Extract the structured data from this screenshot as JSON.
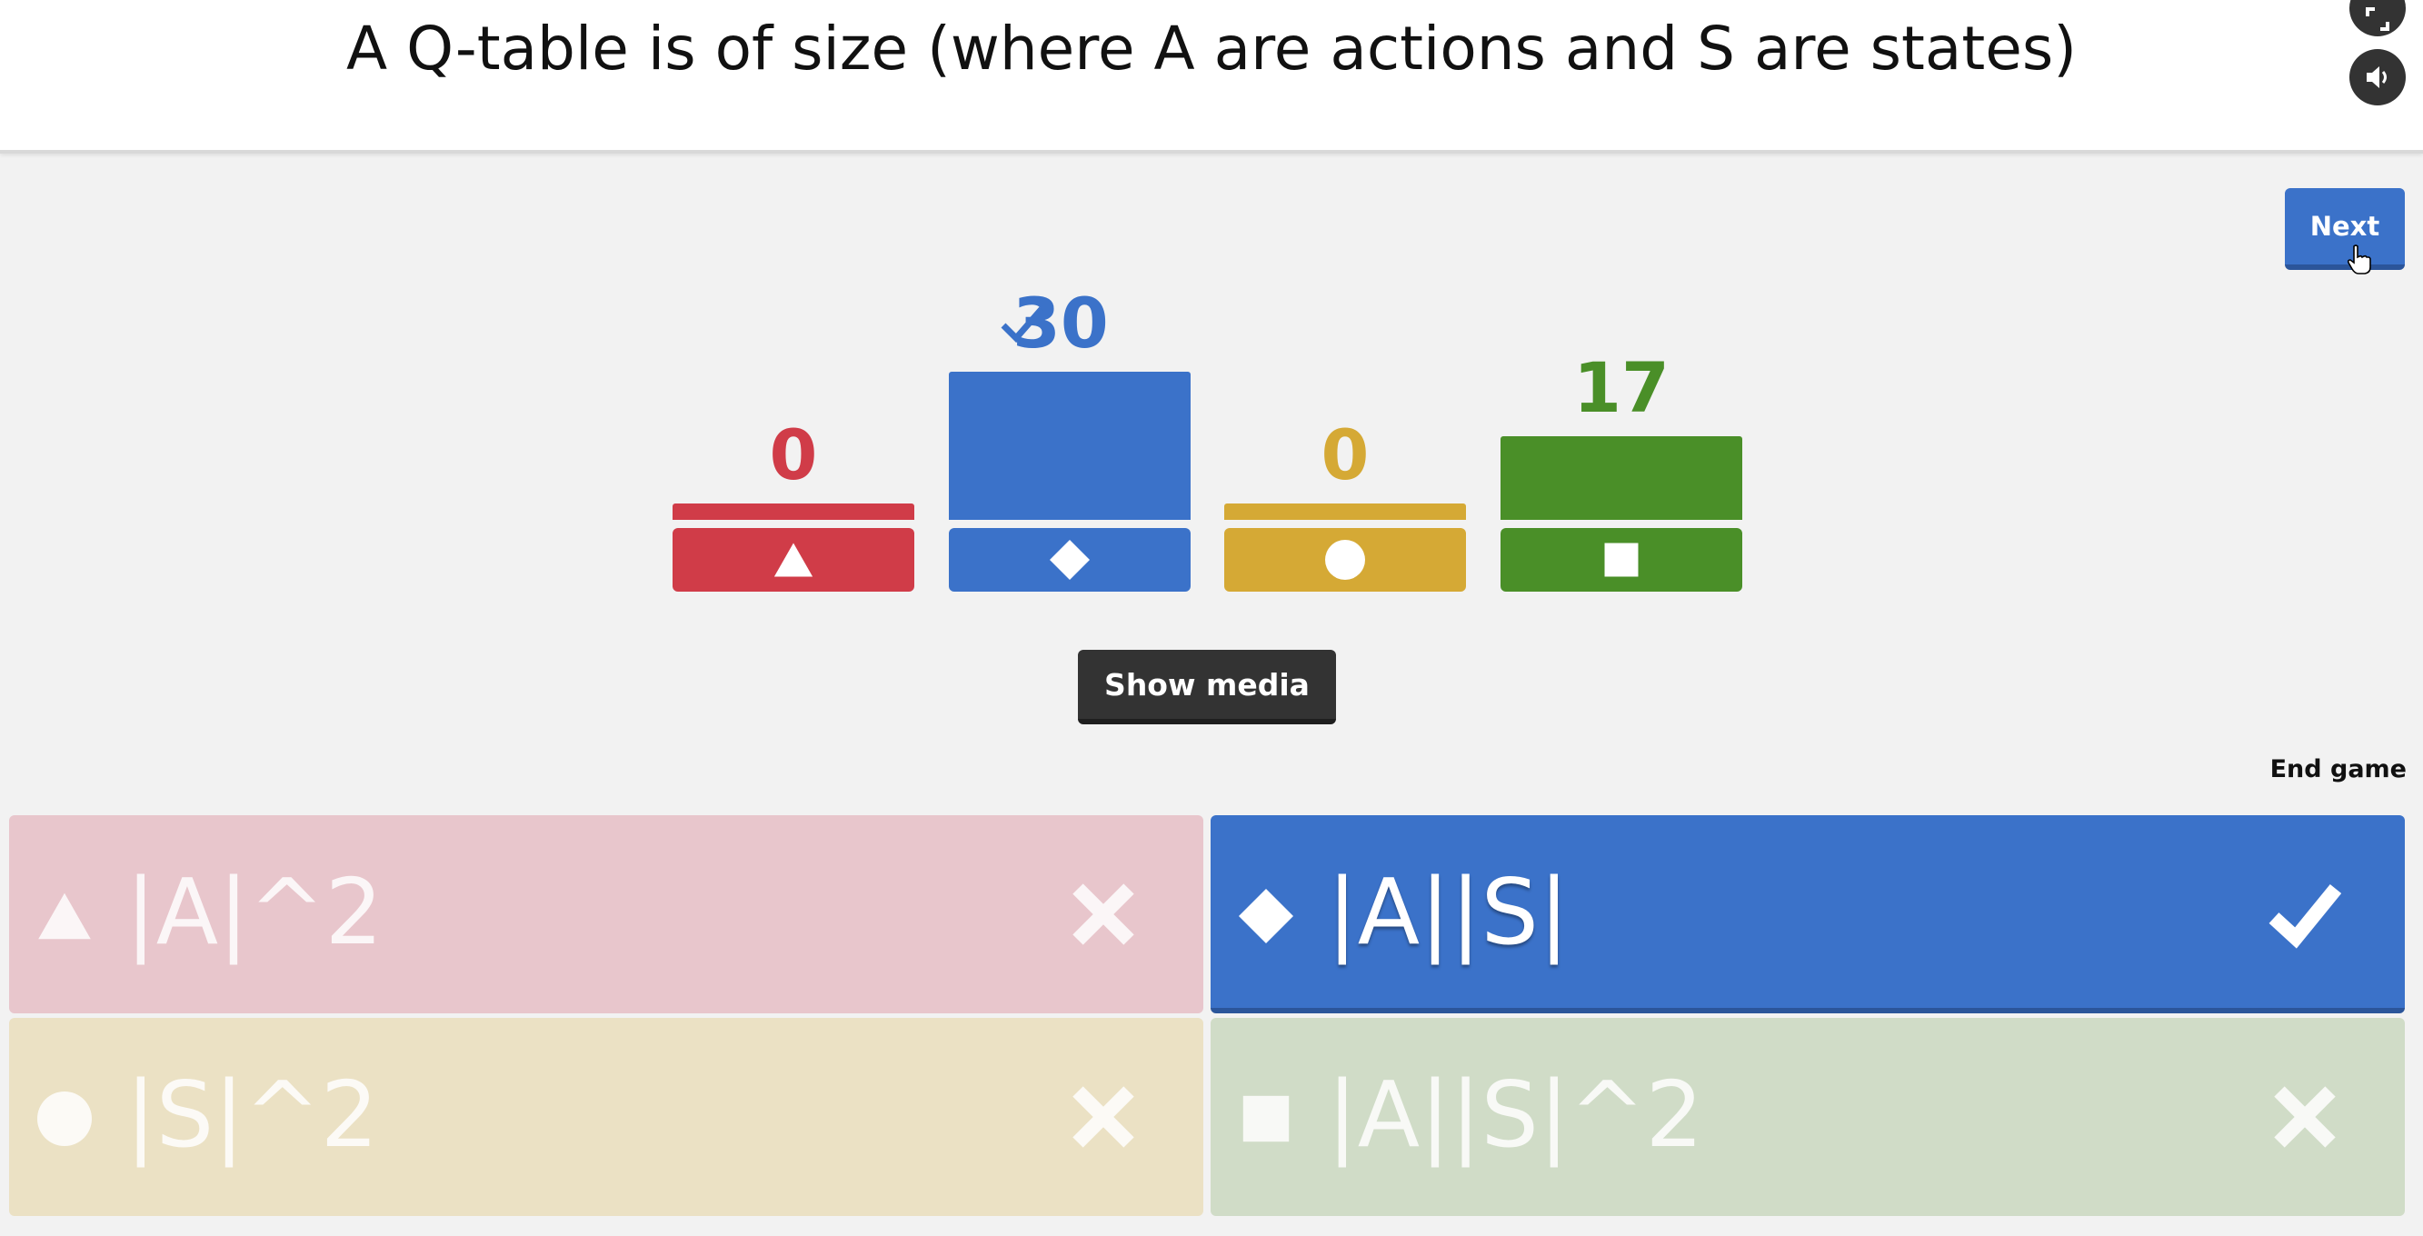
{
  "header": {
    "question": "A Q-table is of size (where A are actions and S are states)",
    "fullscreen_icon": "fullscreen-icon",
    "sound_icon": "sound-icon"
  },
  "controls": {
    "next_label": "Next",
    "show_media_label": "Show media",
    "end_game_label": "End game"
  },
  "results": [
    {
      "shape": "triangle",
      "count": "0",
      "value": 0,
      "color": "#d03c48",
      "correct": false
    },
    {
      "shape": "diamond",
      "count": "30",
      "value": 30,
      "color": "#3b72c9",
      "correct": true
    },
    {
      "shape": "circle",
      "count": "0",
      "value": 0,
      "color": "#d5a935",
      "correct": false
    },
    {
      "shape": "square",
      "count": "17",
      "value": 17,
      "color": "#4a8f28",
      "correct": false
    }
  ],
  "answers": [
    {
      "shape": "triangle",
      "text": "|A|^2",
      "correct": false,
      "color": "#e8c6cc"
    },
    {
      "shape": "diamond",
      "text": "|A||S|",
      "correct": true,
      "color": "#3b72c9"
    },
    {
      "shape": "circle",
      "text": "|S|^2",
      "correct": false,
      "color": "#ebe1c4"
    },
    {
      "shape": "square",
      "text": "|A||S|^2",
      "correct": false,
      "color": "#d0dcc7"
    }
  ]
}
